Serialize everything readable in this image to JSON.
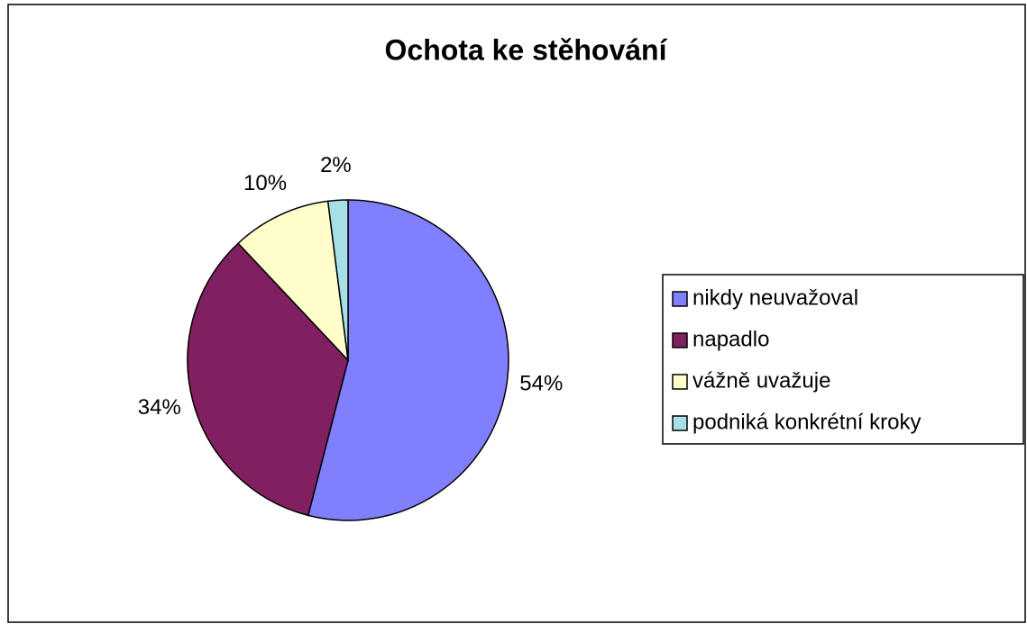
{
  "chart_data": {
    "type": "pie",
    "title": "Ochota ke stěhování",
    "categories": [
      "nikdy neuvažoval",
      "napadlo",
      "vážně uvažuje",
      "podniká konkrétní kroky"
    ],
    "values": [
      54,
      34,
      10,
      2
    ],
    "value_labels": [
      "54%",
      "34%",
      "10%",
      "2%"
    ],
    "colors": [
      "#8080ff",
      "#802060",
      "#ffffcc",
      "#a6e0e6"
    ],
    "legend": "right"
  }
}
